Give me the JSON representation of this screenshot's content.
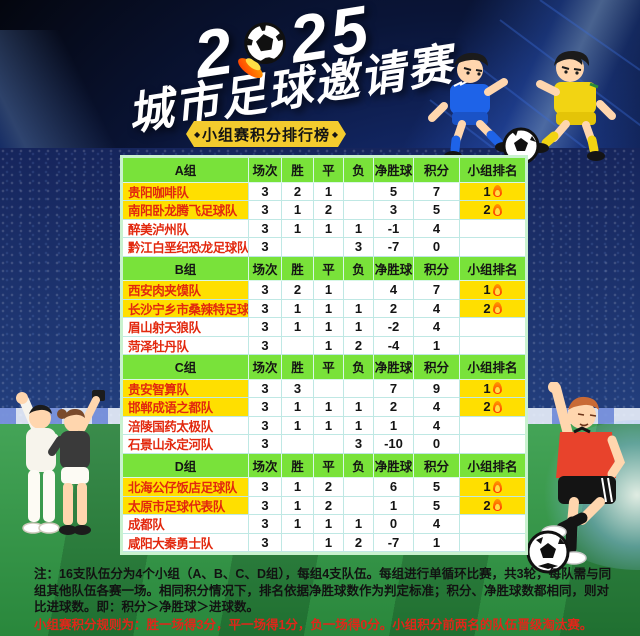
{
  "header": {
    "year_prefix": "2",
    "year_suffix": "25",
    "title": "城市足球邀请赛",
    "banner": "小组赛积分排行榜",
    "banner_diamond": "◆"
  },
  "chart_data": {
    "type": "table",
    "title": "小组赛积分排行榜",
    "columns": [
      "场次",
      "胜",
      "平",
      "负",
      "净胜球",
      "积分",
      "小组排名"
    ],
    "groups": [
      {
        "name": "A组",
        "rows": [
          {
            "team": "贵阳咖啡队",
            "values": [
              "3",
              "2",
              "1",
              "",
              "5",
              "7"
            ],
            "rank": "1",
            "top": true
          },
          {
            "team": "南阳卧龙腾飞足球队",
            "values": [
              "3",
              "1",
              "2",
              "",
              "3",
              "5"
            ],
            "rank": "2",
            "top": true
          },
          {
            "team": "醉美泸州队",
            "values": [
              "3",
              "1",
              "1",
              "1",
              "-1",
              "4"
            ],
            "rank": "",
            "top": false
          },
          {
            "team": "黔江白垩纪恐龙足球队",
            "values": [
              "3",
              "",
              "",
              "3",
              "-7",
              "0"
            ],
            "rank": "",
            "top": false
          }
        ]
      },
      {
        "name": "B组",
        "rows": [
          {
            "team": "西安肉夹馍队",
            "values": [
              "3",
              "2",
              "1",
              "",
              "4",
              "7"
            ],
            "rank": "1",
            "top": true
          },
          {
            "team": "长沙宁乡市桑辣特足球队",
            "values": [
              "3",
              "1",
              "1",
              "1",
              "2",
              "4"
            ],
            "rank": "2",
            "top": true
          },
          {
            "team": "眉山射天狼队",
            "values": [
              "3",
              "1",
              "1",
              "1",
              "-2",
              "4"
            ],
            "rank": "",
            "top": false
          },
          {
            "team": "菏泽牡丹队",
            "values": [
              "3",
              "",
              "1",
              "2",
              "-4",
              "1"
            ],
            "rank": "",
            "top": false
          }
        ]
      },
      {
        "name": "C组",
        "rows": [
          {
            "team": "贵安智算队",
            "values": [
              "3",
              "3",
              "",
              "",
              "7",
              "9"
            ],
            "rank": "1",
            "top": true
          },
          {
            "team": "邯郸成语之都队",
            "values": [
              "3",
              "1",
              "1",
              "1",
              "2",
              "4"
            ],
            "rank": "2",
            "top": true
          },
          {
            "team": "涪陵国药太极队",
            "values": [
              "3",
              "1",
              "1",
              "1",
              "1",
              "4"
            ],
            "rank": "",
            "top": false
          },
          {
            "team": "石景山永定河队",
            "values": [
              "3",
              "",
              "",
              "3",
              "-10",
              "0"
            ],
            "rank": "",
            "top": false
          }
        ]
      },
      {
        "name": "D组",
        "rows": [
          {
            "team": "北海公仔饭店足球队",
            "values": [
              "3",
              "1",
              "2",
              "",
              "6",
              "5"
            ],
            "rank": "1",
            "top": true
          },
          {
            "team": "太原市足球代表队",
            "values": [
              "3",
              "1",
              "2",
              "",
              "1",
              "5"
            ],
            "rank": "2",
            "top": true
          },
          {
            "team": "成都队",
            "values": [
              "3",
              "1",
              "1",
              "1",
              "0",
              "4"
            ],
            "rank": "",
            "top": false
          },
          {
            "team": "咸阳大秦勇士队",
            "values": [
              "3",
              "",
              "1",
              "2",
              "-7",
              "1"
            ],
            "rank": "",
            "top": false
          }
        ]
      }
    ]
  },
  "notes": {
    "rules_text": "注：16支队伍分为4个小组（A、B、C、D组），每组4支队伍。每组进行单循环比赛，共3轮，每队需与同组其他队伍各赛一场。相同积分情况下，排名依据净胜球数作为判定标准；积分、净胜球数都相同，则对比进球数。即：积分＞净胜球＞进球数。",
    "scoring_text": "小组赛积分规则为：胜一场得3分，平一场得1分，负一场得0分。小组积分前两名的队伍晋级淘汰赛。"
  },
  "colors": {
    "header_green": "#79e23a",
    "highlight_yellow": "#ffdf00",
    "team_name_red": "#e2280e",
    "banner_gold": "#f3cb2e",
    "note_red": "#e0261a",
    "pitch_green": "#2f9a44",
    "sky_navy": "#0a1538"
  },
  "icons": {
    "rank_flame": "flame-icon",
    "title_ball": "soccer-ball-flame-icon"
  }
}
